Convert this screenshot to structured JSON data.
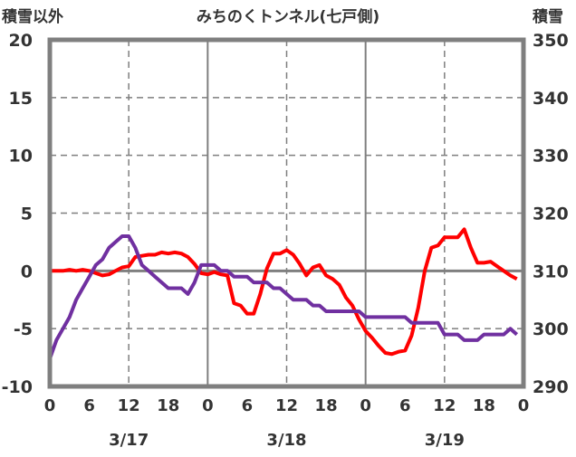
{
  "chart_data": {
    "type": "line",
    "title": "みちのくトンネル(七戸側)",
    "ylabel_left": "積雪以外",
    "ylabel_right": "積雪",
    "ylim_left": [
      -10,
      20
    ],
    "ylim_right": [
      290,
      350
    ],
    "yticks_left": [
      "20",
      "15",
      "10",
      "5",
      "0",
      "-5",
      "-10"
    ],
    "yticks_right": [
      "350",
      "340",
      "330",
      "320",
      "310",
      "300",
      "290"
    ],
    "xtick_labels": [
      "0",
      "6",
      "12",
      "18",
      "0",
      "6",
      "12",
      "18",
      "0",
      "6",
      "12",
      "18",
      "0"
    ],
    "day_labels": [
      "3/17",
      "3/18",
      "3/19"
    ],
    "x_unit": "hour",
    "grid": true,
    "series": [
      {
        "name": "temperature",
        "axis": "left",
        "color": "#ff0000",
        "values": [
          0,
          0,
          0,
          0.1,
          0,
          0.1,
          0,
          -0.2,
          -0.4,
          -0.3,
          0,
          0.3,
          0.4,
          1.2,
          1.3,
          1.4,
          1.4,
          1.6,
          1.5,
          1.6,
          1.5,
          1.2,
          0.6,
          -0.2,
          -0.3,
          -0.1,
          -0.3,
          -0.4,
          -2.8,
          -3.0,
          -3.7,
          -3.7,
          -2.0,
          0.2,
          1.5,
          1.5,
          1.8,
          1.4,
          0.6,
          -0.4,
          0.3,
          0.5,
          -0.4,
          -0.7,
          -1.2,
          -2.3,
          -3.0,
          -4.2,
          -5.2,
          -5.8,
          -6.5,
          -7.1,
          -7.2,
          -7.0,
          -6.9,
          -5.6,
          -3.2,
          0.0,
          2.0,
          2.2,
          2.9,
          2.9,
          2.9,
          3.6,
          2.0,
          0.7,
          0.7,
          0.8,
          0.4,
          0,
          -0.4,
          -0.7
        ]
      },
      {
        "name": "snow_depth",
        "axis": "right",
        "color": "#7030a0",
        "values": [
          294.8,
          298,
          300,
          302,
          305,
          307,
          309,
          311,
          312,
          314,
          315,
          316,
          316,
          314,
          311,
          310,
          309,
          308,
          307,
          307,
          307,
          306,
          308,
          311,
          311,
          311,
          310,
          310,
          309,
          309,
          309,
          308,
          308,
          308,
          307,
          307,
          306,
          305,
          305,
          305,
          304,
          304,
          303,
          303,
          303,
          303,
          303,
          303,
          302,
          302,
          302,
          302,
          302,
          302,
          302,
          301,
          301,
          301,
          301,
          301,
          299,
          299,
          299,
          298,
          298,
          298,
          299,
          299,
          299,
          299,
          300,
          299
        ]
      }
    ]
  }
}
